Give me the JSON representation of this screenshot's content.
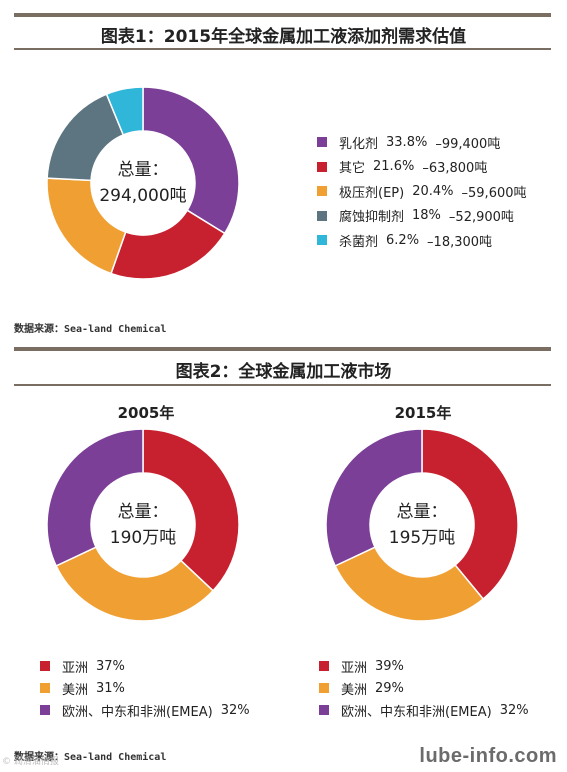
{
  "figure1": {
    "title": "图表1：2015年全球金属加工液添加剂需求估值",
    "source": "数据来源：Sea-land Chemical",
    "center_text": [
      "总量：",
      "294,000吨"
    ]
  },
  "figure2": {
    "title": "图表2：全球金属加工液市场",
    "source": "数据来源：Sea-land Chemical"
  },
  "watermark": "lube-info.com",
  "small_watermark": "© 润滑油情报",
  "chart_data": [
    {
      "type": "pie",
      "title": "图表1：2015年全球金属加工液添加剂需求估值",
      "slices": [
        {
          "label": "乳化剂",
          "percent": "33.8%",
          "amount": "–99,400吨",
          "value": 33.8,
          "color": "#7b3f98"
        },
        {
          "label": "其它",
          "percent": "21.6%",
          "amount": "–63,800吨",
          "value": 21.6,
          "color": "#c7202e"
        },
        {
          "label": "极压剂(EP)",
          "percent": "20.4%",
          "amount": "–59,600吨",
          "value": 20.4,
          "color": "#f0a033"
        },
        {
          "label": "腐蚀抑制剂",
          "percent": "18%",
          "amount": "–52,900吨",
          "value": 18,
          "color": "#5d7580"
        },
        {
          "label": "杀菌剂",
          "percent": "6.2%",
          "amount": "–18,300吨",
          "value": 6.2,
          "color": "#30b6d9"
        }
      ]
    },
    {
      "type": "pie",
      "title": "2005年",
      "center_text": [
        "总量：",
        "190万吨"
      ],
      "slices": [
        {
          "label": "亚洲",
          "percent": "37%",
          "value": 37,
          "color": "#c7202e"
        },
        {
          "label": "美洲",
          "percent": "31%",
          "value": 31,
          "color": "#f0a033"
        },
        {
          "label": "欧洲、中东和非洲(EMEA)",
          "percent": "32%",
          "value": 32,
          "color": "#7b3f98"
        }
      ]
    },
    {
      "type": "pie",
      "title": "2015年",
      "center_text": [
        "总量：",
        "195万吨"
      ],
      "slices": [
        {
          "label": "亚洲",
          "percent": "39%",
          "value": 39,
          "color": "#c7202e"
        },
        {
          "label": "美洲",
          "percent": "29%",
          "value": 29,
          "color": "#f0a033"
        },
        {
          "label": "欧洲、中东和非洲(EMEA)",
          "percent": "32%",
          "value": 32,
          "color": "#7b3f98"
        }
      ]
    }
  ]
}
